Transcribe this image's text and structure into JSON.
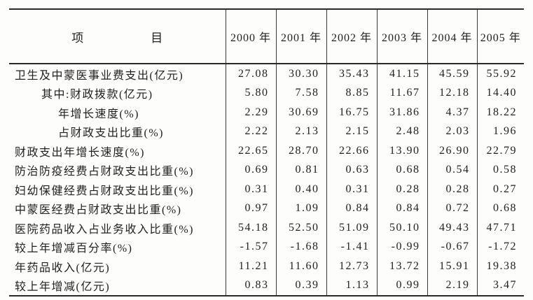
{
  "chart_data": {
    "type": "table",
    "title": "",
    "item_column_header": {
      "left": "项",
      "right": "目"
    },
    "columns": [
      "2000 年",
      "2001 年",
      "2002 年",
      "2003 年",
      "2004 年",
      "2005 年"
    ],
    "rows": [
      {
        "label": "卫生及中蒙医事业费支出(亿元)",
        "indent": 0,
        "values": [
          "27.08",
          "30.30",
          "35.43",
          "41.15",
          "45.59",
          "55.92"
        ]
      },
      {
        "label": "其中:财政拨款(亿元)",
        "indent": 1,
        "values": [
          "5.80",
          "7.58",
          "8.85",
          "11.67",
          "12.18",
          "14.40"
        ]
      },
      {
        "label": "年增长速度(%)",
        "indent": 2,
        "values": [
          "2.29",
          "30.69",
          "16.75",
          "31.86",
          "4.37",
          "18.22"
        ]
      },
      {
        "label": "占财政支出比重(%)",
        "indent": 2,
        "values": [
          "2.22",
          "2.13",
          "2.15",
          "2.48",
          "2.03",
          "1.96"
        ]
      },
      {
        "label": "财政支出年增长速度(%)",
        "indent": 0,
        "values": [
          "22.65",
          "28.70",
          "22.66",
          "13.90",
          "26.90",
          "22.79"
        ]
      },
      {
        "label": "防治防疫经费占财政支出比重(%)",
        "indent": 0,
        "values": [
          "0.69",
          "0.81",
          "0.63",
          "0.68",
          "0.54",
          "0.58"
        ]
      },
      {
        "label": "妇幼保健经费占财政支出比重(%)",
        "indent": 0,
        "values": [
          "0.31",
          "0.40",
          "0.31",
          "0.28",
          "0.28",
          "0.27"
        ]
      },
      {
        "label": "中蒙医经费占财政支出比重(%)",
        "indent": 0,
        "values": [
          "0.97",
          "1.09",
          "0.84",
          "0.84",
          "0.72",
          "0.68"
        ]
      },
      {
        "label": "医院药品收入占业务收入比重(%)",
        "indent": 0,
        "values": [
          "54.18",
          "52.50",
          "51.09",
          "50.10",
          "49.43",
          "47.71"
        ]
      },
      {
        "label": "较上年增减百分率(%)",
        "indent": 0,
        "values": [
          "-1.57",
          "-1.68",
          "-1.41",
          "-0.99",
          "-0.67",
          "-1.72"
        ]
      },
      {
        "label": "年药品收入(亿元)",
        "indent": 0,
        "values": [
          "11.21",
          "11.60",
          "12.73",
          "13.72",
          "15.91",
          "19.38"
        ]
      },
      {
        "label": "较上年增减(亿元)",
        "indent": 0,
        "values": [
          "0.83",
          "0.39",
          "1.13",
          "0.99",
          "2.19",
          "3.47"
        ]
      }
    ]
  },
  "colors": {
    "text": "#232120",
    "rule": "#2c2a28",
    "background": "#fdfdfb"
  }
}
